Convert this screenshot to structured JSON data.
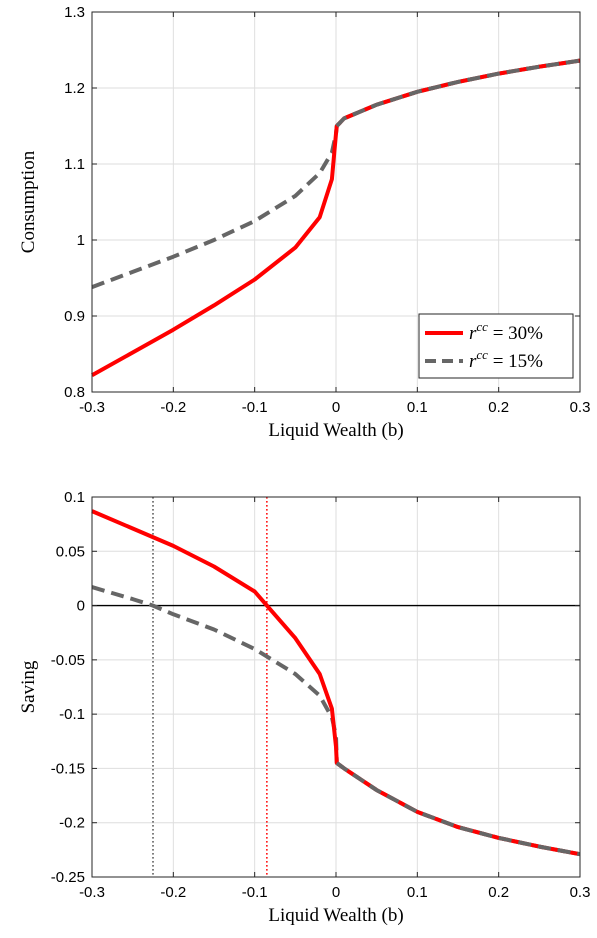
{
  "chart_data": [
    {
      "type": "line",
      "panel": "top",
      "xlabel": "Liquid Wealth (b)",
      "ylabel": "Consumption",
      "xlim": [
        -0.3,
        0.3
      ],
      "ylim": [
        0.8,
        1.3
      ],
      "xticks": [
        -0.3,
        -0.2,
        -0.1,
        0,
        0.1,
        0.2,
        0.3
      ],
      "xtick_labels": [
        "-0.3",
        "-0.2",
        "-0.1",
        "0",
        "0.1",
        "0.2",
        "0.3"
      ],
      "yticks": [
        0.8,
        0.9,
        1.0,
        1.1,
        1.2,
        1.3
      ],
      "ytick_labels": [
        "0.8",
        "0.9",
        "1",
        "1.1",
        "1.2",
        "1.3"
      ],
      "grid": true,
      "legend": {
        "placement": "bottom-right",
        "entries": [
          {
            "base": "r",
            "sup": "cc",
            "eq": " = 30%",
            "color": "#ff0000",
            "style": "solid"
          },
          {
            "base": "r",
            "sup": "cc",
            "eq": " = 15%",
            "color": "#666666",
            "style": "dashed"
          }
        ]
      },
      "series": [
        {
          "color": "#ff0000",
          "style": "solid",
          "x": [
            -0.3,
            -0.25,
            -0.2,
            -0.15,
            -0.1,
            -0.05,
            -0.02,
            -0.005,
            0,
            0.001,
            0.01,
            0.05,
            0.1,
            0.15,
            0.2,
            0.25,
            0.3
          ],
          "y": [
            0.822,
            0.852,
            0.882,
            0.914,
            0.948,
            0.99,
            1.03,
            1.08,
            1.14,
            1.15,
            1.16,
            1.178,
            1.195,
            1.208,
            1.219,
            1.228,
            1.236
          ]
        },
        {
          "color": "#666666",
          "style": "dashed",
          "x": [
            -0.3,
            -0.25,
            -0.2,
            -0.15,
            -0.1,
            -0.05,
            -0.02,
            -0.005,
            0,
            0.001,
            0.01,
            0.05,
            0.1,
            0.15,
            0.2,
            0.25,
            0.3
          ],
          "y": [
            0.938,
            0.958,
            0.978,
            1.0,
            1.025,
            1.058,
            1.088,
            1.115,
            1.14,
            1.15,
            1.16,
            1.178,
            1.195,
            1.208,
            1.219,
            1.228,
            1.236
          ]
        }
      ]
    },
    {
      "type": "line",
      "panel": "bottom",
      "xlabel": "Liquid Wealth (b)",
      "ylabel": "Saving",
      "xlim": [
        -0.3,
        0.3
      ],
      "ylim": [
        -0.25,
        0.1
      ],
      "xticks": [
        -0.3,
        -0.2,
        -0.1,
        0,
        0.1,
        0.2,
        0.3
      ],
      "xtick_labels": [
        "-0.3",
        "-0.2",
        "-0.1",
        "0",
        "0.1",
        "0.2",
        "0.3"
      ],
      "yticks": [
        -0.25,
        -0.2,
        -0.15,
        -0.1,
        -0.05,
        0,
        0.05,
        0.1
      ],
      "ytick_labels": [
        "-0.25",
        "-0.2",
        "-0.15",
        "-0.1",
        "-0.05",
        "0",
        "0.05",
        "0.1"
      ],
      "grid": true,
      "zero_line": {
        "y": 0,
        "color": "#000000"
      },
      "vlines": [
        {
          "x": -0.225,
          "color": "#555555",
          "style": "dotted"
        },
        {
          "x": -0.085,
          "color": "#ff0000",
          "style": "dotted"
        }
      ],
      "series": [
        {
          "color": "#ff0000",
          "style": "solid",
          "x": [
            -0.3,
            -0.25,
            -0.2,
            -0.15,
            -0.1,
            -0.085,
            -0.05,
            -0.02,
            -0.005,
            0,
            0.001,
            0.01,
            0.05,
            0.1,
            0.15,
            0.2,
            0.25,
            0.3
          ],
          "y": [
            0.087,
            0.071,
            0.055,
            0.036,
            0.013,
            0.0,
            -0.03,
            -0.063,
            -0.095,
            -0.13,
            -0.145,
            -0.15,
            -0.17,
            -0.19,
            -0.204,
            -0.214,
            -0.222,
            -0.229
          ]
        },
        {
          "color": "#666666",
          "style": "dashed",
          "x": [
            -0.3,
            -0.25,
            -0.225,
            -0.2,
            -0.15,
            -0.1,
            -0.05,
            -0.02,
            -0.005,
            0,
            0.001,
            0.01,
            0.05,
            0.1,
            0.15,
            0.2,
            0.25,
            0.3
          ],
          "y": [
            0.017,
            0.006,
            0.0,
            -0.008,
            -0.022,
            -0.04,
            -0.063,
            -0.083,
            -0.103,
            -0.12,
            -0.145,
            -0.15,
            -0.17,
            -0.19,
            -0.204,
            -0.214,
            -0.222,
            -0.229
          ]
        }
      ]
    }
  ]
}
